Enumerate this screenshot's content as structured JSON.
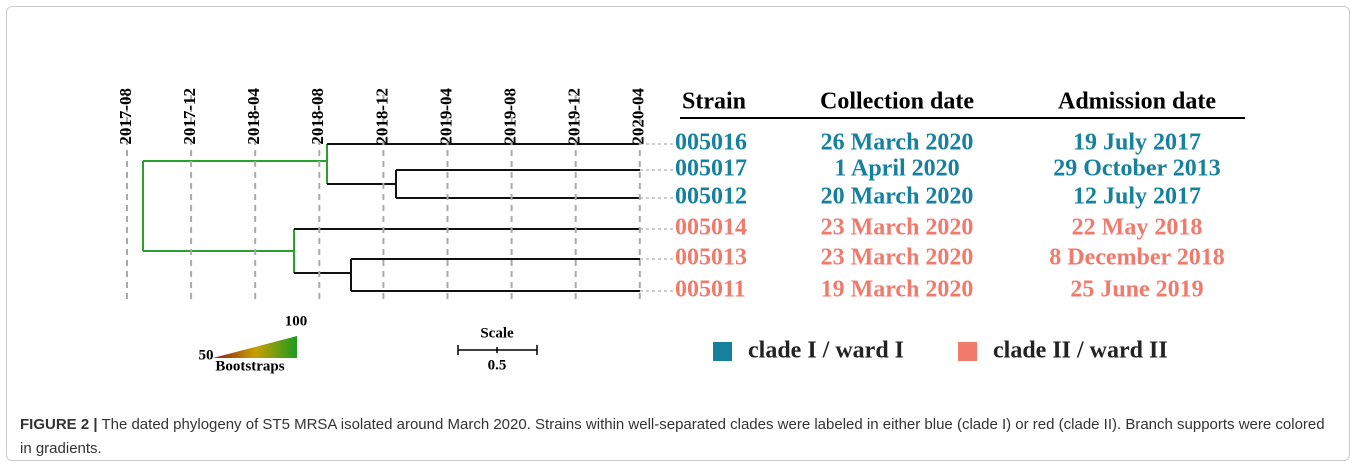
{
  "time_axis": {
    "ticks": [
      "2017-08",
      "2017-12",
      "2018-04",
      "2018-08",
      "2018-12",
      "2019-04",
      "2019-08",
      "2019-12",
      "2020-04"
    ]
  },
  "table": {
    "headers": [
      "Strain",
      "Collection date",
      "Admission date"
    ],
    "rows": [
      {
        "cells": [
          "005016",
          "26 March 2020",
          "19 July 2017"
        ],
        "color": "#16819f"
      },
      {
        "cells": [
          "005017",
          "1 April 2020",
          "29 October 2013"
        ],
        "color": "#16819f"
      },
      {
        "cells": [
          "005012",
          "20 March 2020",
          "12 July 2017"
        ],
        "color": "#16819f"
      },
      {
        "cells": [
          "005014",
          "23 March 2020",
          "22 May 2018"
        ],
        "color": "#f07a6c"
      },
      {
        "cells": [
          "005013",
          "23 March 2020",
          "8 December 2018"
        ],
        "color": "#f07a6c"
      },
      {
        "cells": [
          "005011",
          "19 March 2020",
          "25 June 2019"
        ],
        "color": "#f07a6c"
      }
    ]
  },
  "bootstrap_legend": {
    "max": "100",
    "min": "50",
    "label": "Bootstraps"
  },
  "scale": {
    "label": "Scale",
    "value": "0.5"
  },
  "legend": [
    {
      "name": "clade I / ward I",
      "color": "#16819f"
    },
    {
      "name": "clade II / ward II",
      "color": "#f07a6c"
    }
  ],
  "caption": {
    "label": "FIGURE 2 |",
    "text": "The dated phylogeny of ST5 MRSA isolated around March 2020. Strains within well-separated clades were labeled in either blue (clade I) or red (clade II). Branch supports were colored in gradients."
  }
}
